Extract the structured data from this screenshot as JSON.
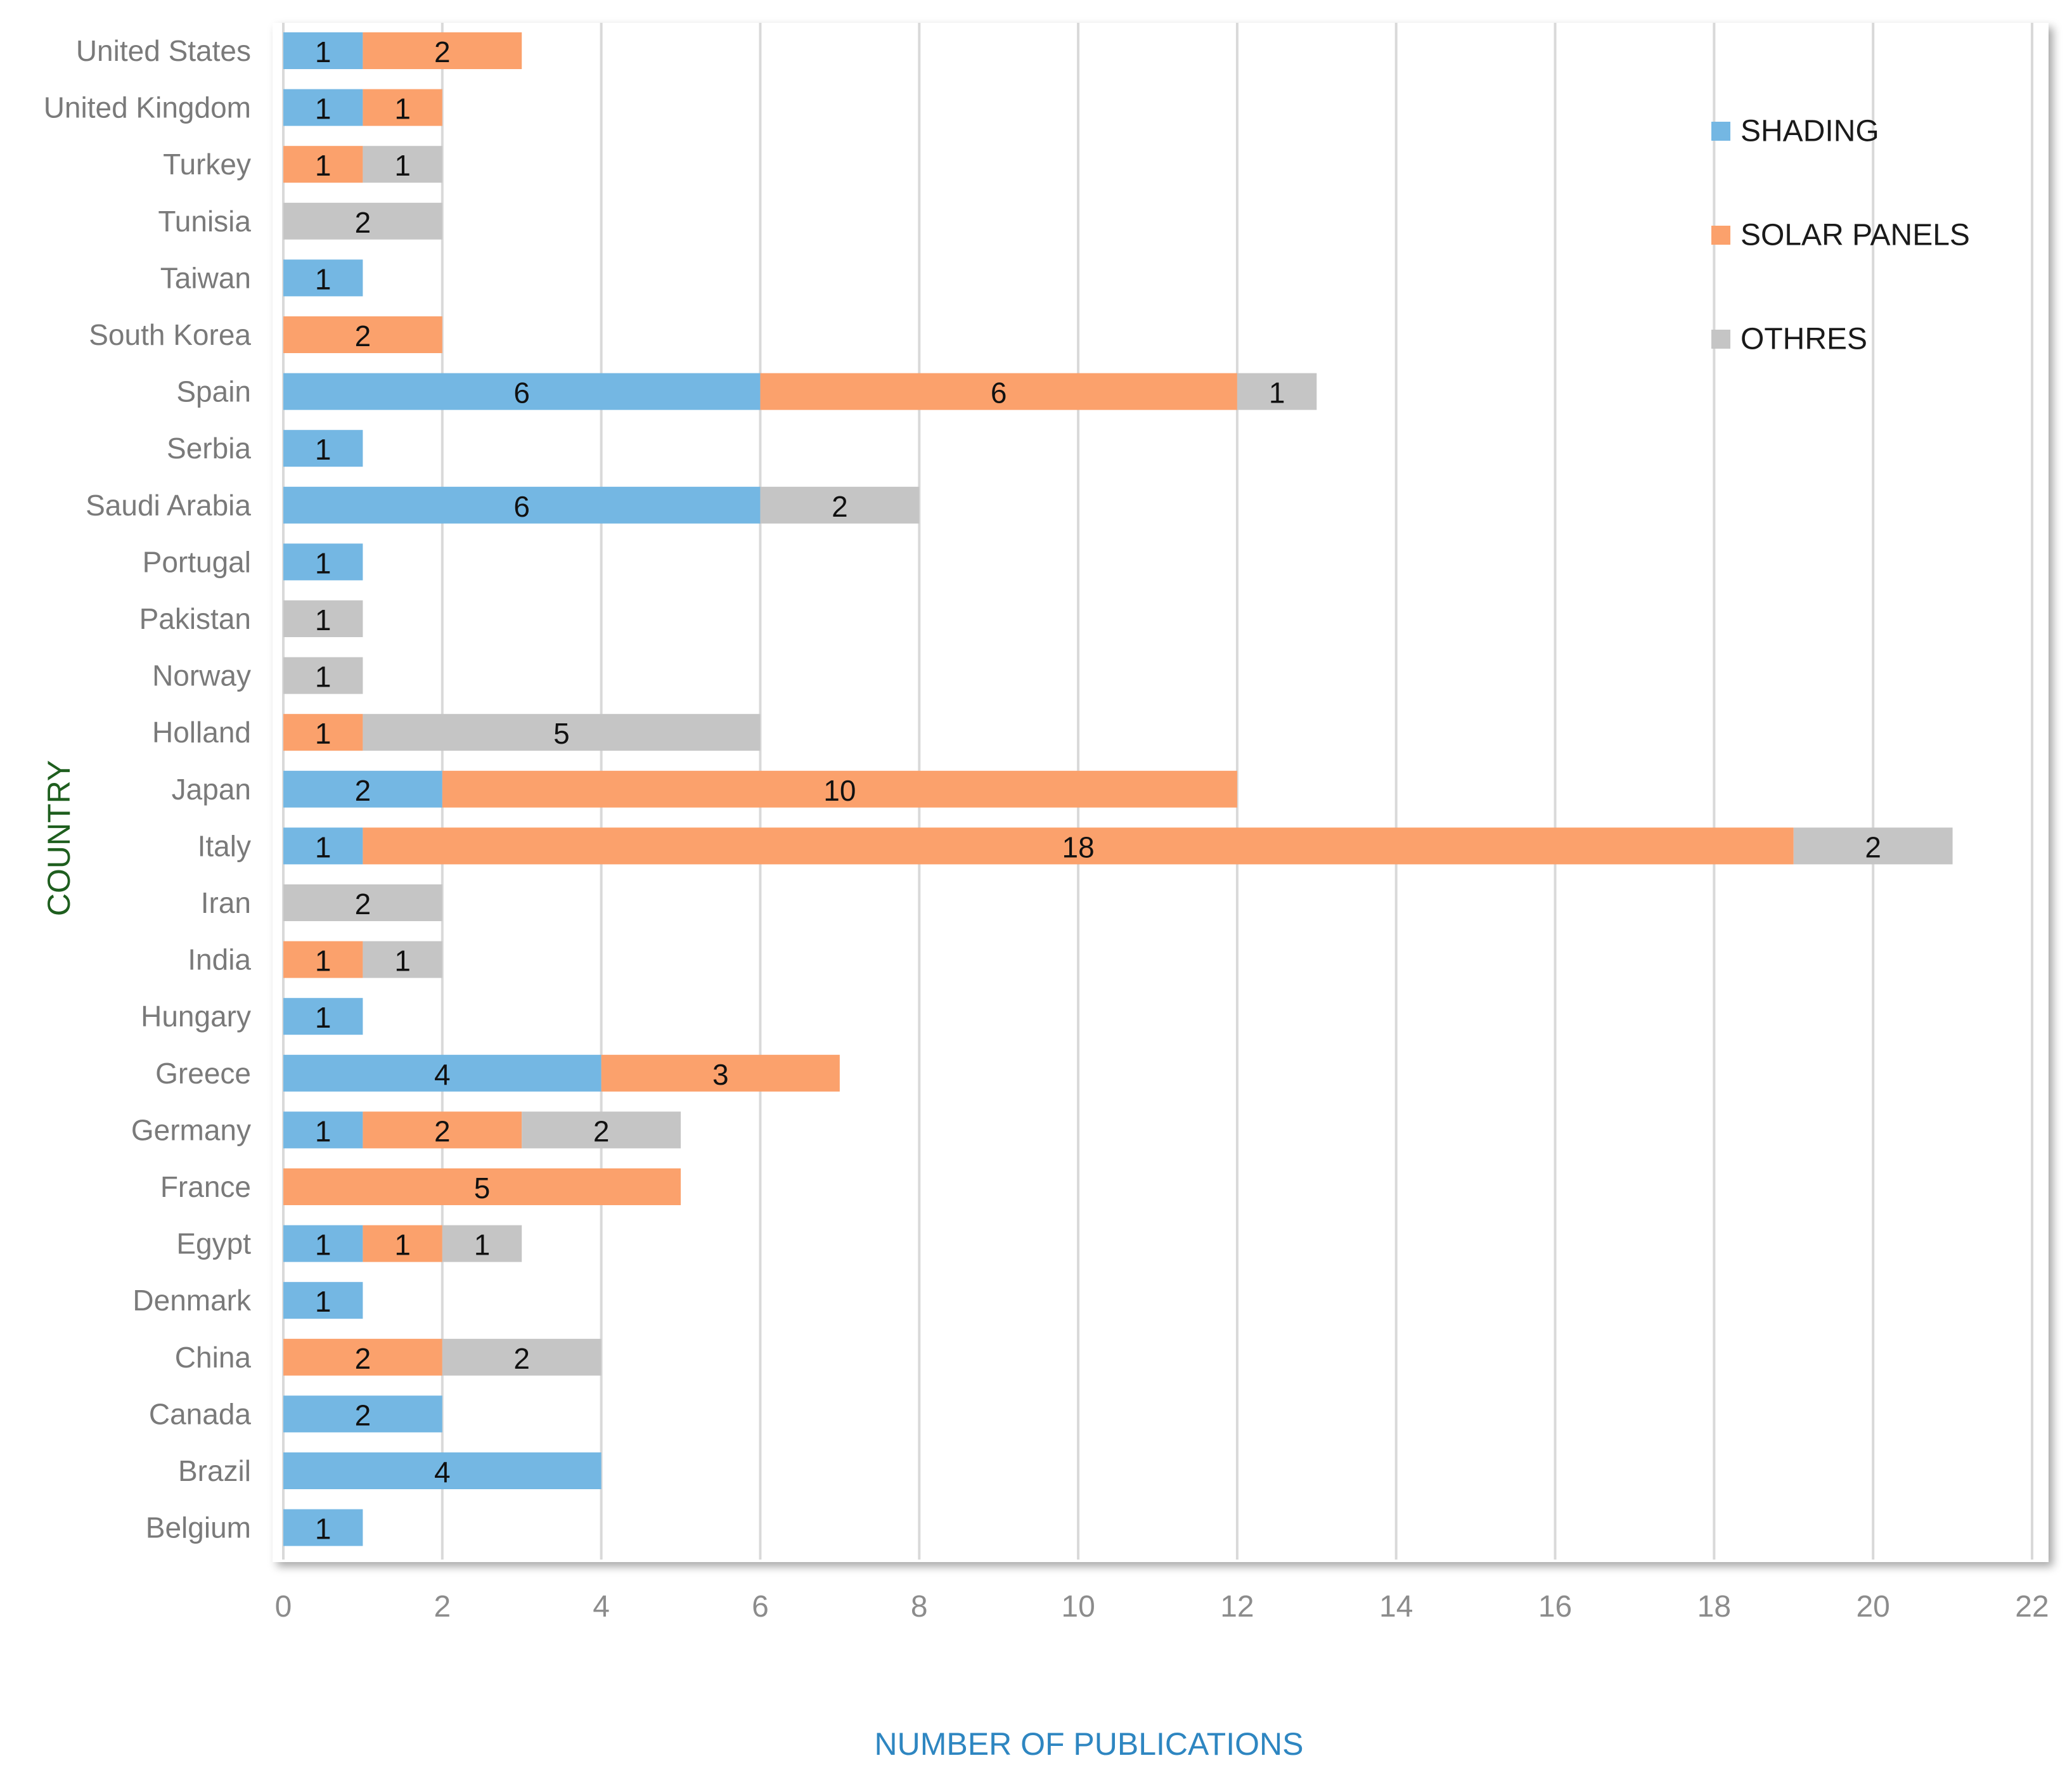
{
  "chart_data": {
    "type": "bar",
    "orientation": "horizontal",
    "stacked": true,
    "title": "",
    "xlabel": "NUMBER OF PUBLICATIONS",
    "ylabel": "COUNTRY",
    "xlim": [
      0,
      22
    ],
    "xticks": [
      0,
      2,
      4,
      6,
      8,
      10,
      12,
      14,
      16,
      18,
      20,
      22
    ],
    "grid": true,
    "legend_position": "top-right",
    "categories": [
      "United States",
      "United Kingdom",
      "Turkey",
      "Tunisia",
      "Taiwan",
      "South Korea",
      "Spain",
      "Serbia",
      "Saudi Arabia",
      "Portugal",
      "Pakistan",
      "Norway",
      "Holland",
      "Japan",
      "Italy",
      "Iran",
      "India",
      "Hungary",
      "Greece",
      "Germany",
      "France",
      "Egypt",
      "Denmark",
      "China",
      "Canada",
      "Brazil",
      "Belgium"
    ],
    "series": [
      {
        "name": "SHADING",
        "color": "#74b7e3",
        "values": [
          1,
          1,
          0,
          0,
          1,
          0,
          6,
          1,
          6,
          1,
          0,
          0,
          0,
          2,
          1,
          0,
          0,
          1,
          4,
          1,
          0,
          1,
          1,
          0,
          2,
          4,
          1
        ]
      },
      {
        "name": "SOLAR PANELS",
        "color": "#fba16c",
        "values": [
          2,
          1,
          1,
          0,
          0,
          2,
          6,
          0,
          0,
          0,
          0,
          0,
          1,
          10,
          18,
          0,
          1,
          0,
          3,
          2,
          5,
          1,
          0,
          2,
          0,
          0,
          0
        ]
      },
      {
        "name": "OTHRES",
        "color": "#c5c5c5",
        "values": [
          0,
          0,
          1,
          2,
          0,
          0,
          1,
          0,
          2,
          0,
          1,
          1,
          5,
          0,
          2,
          2,
          1,
          0,
          0,
          2,
          0,
          1,
          0,
          2,
          0,
          0,
          0
        ]
      }
    ]
  }
}
